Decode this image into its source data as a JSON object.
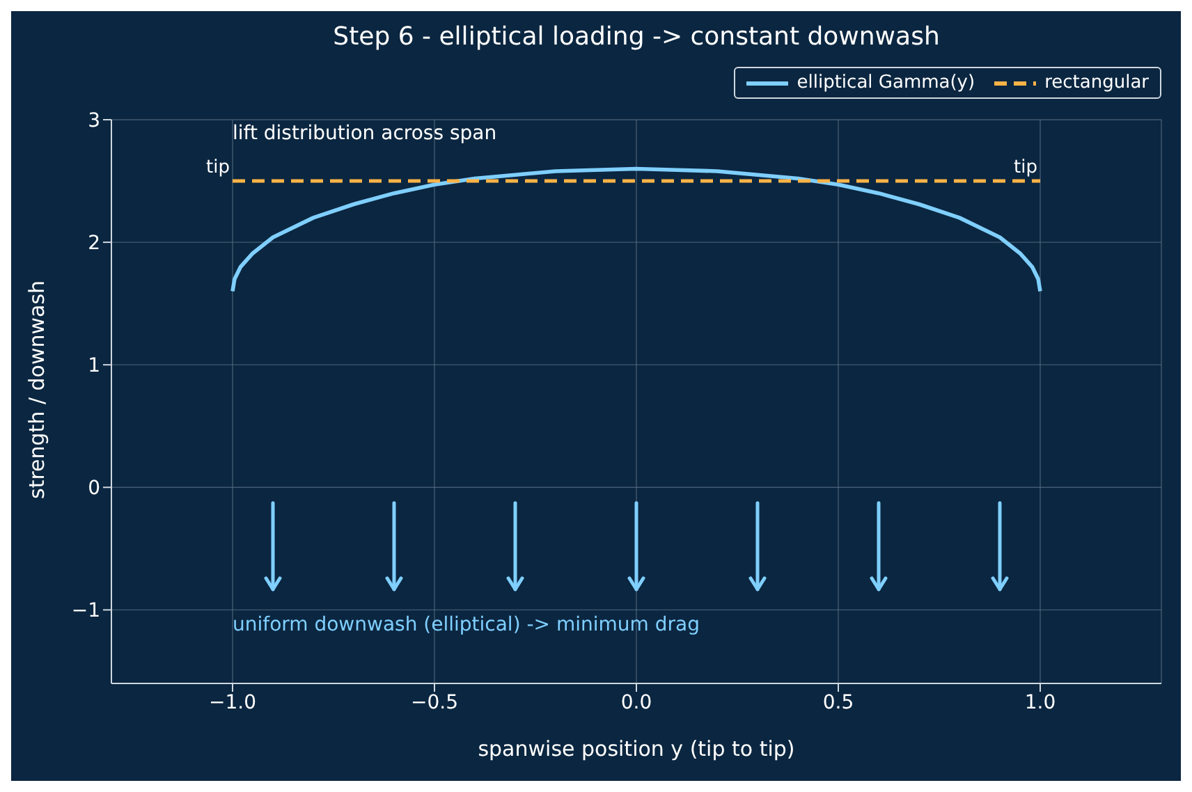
{
  "chart_data": {
    "type": "line",
    "title": "Step 6 - elliptical loading -> constant downwash",
    "xlabel": "spanwise position y (tip to tip)",
    "ylabel": "strength / downwash",
    "xlim": [
      -1.3,
      1.3
    ],
    "xticks": [
      {
        "value": -1,
        "label": "−1.0"
      },
      {
        "value": -0.5,
        "label": "−0.5"
      },
      {
        "value": 0,
        "label": "0.0"
      },
      {
        "value": 0.5,
        "label": "0.5"
      },
      {
        "value": 1,
        "label": "1.0"
      }
    ],
    "ylim": [
      -1.6,
      3
    ],
    "yticks": [
      {
        "value": -1,
        "label": "−1"
      },
      0,
      1,
      2,
      3
    ],
    "grid": true,
    "legend": "top right",
    "series": [
      {
        "name": "elliptical Gamma(y)",
        "color": "#7fcfff",
        "line_style": "solid",
        "x": [
          -1,
          -0.995,
          -0.98,
          -0.95,
          -0.9,
          -0.8,
          -0.7,
          -0.6,
          -0.5,
          -0.4,
          -0.3,
          -0.2,
          -0.1,
          0,
          0.1,
          0.2,
          0.3,
          0.4,
          0.5,
          0.6,
          0.7,
          0.8,
          0.9,
          0.95,
          0.98,
          0.995,
          1
        ],
        "values": [
          1.6,
          1.7,
          1.8,
          1.91,
          2.04,
          2.2,
          2.31,
          2.4,
          2.47,
          2.52,
          2.55,
          2.58,
          2.59,
          2.6,
          2.59,
          2.58,
          2.55,
          2.52,
          2.47,
          2.4,
          2.31,
          2.2,
          2.04,
          1.91,
          1.8,
          1.7,
          1.6
        ]
      },
      {
        "name": "rectangular",
        "color": "#ffb347",
        "line_style": "dashed",
        "x": [
          -1,
          1
        ],
        "values": [
          2.5,
          2.5
        ]
      }
    ],
    "annotations": [
      "lift distribution across span",
      {
        "text": "tip",
        "x": -1,
        "y": 2.5
      },
      {
        "text": "tip",
        "x": 1,
        "y": 2.5
      },
      "uniform downwash (elliptical) -> minimum drag"
    ]
  }
}
